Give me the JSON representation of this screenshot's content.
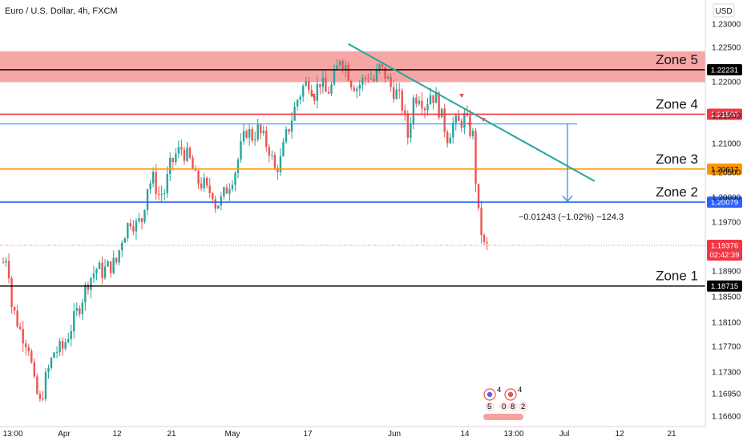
{
  "chart_data": {
    "type": "candlestick",
    "title": "Euro / U.S. Dollar, 4h, FXCM",
    "currency": "USD",
    "ylim": [
      1.1642,
      1.233
    ],
    "y_ticks": [
      "1.23000",
      "1.22500",
      "1.22000",
      "1.21500",
      "1.21000",
      "1.20500",
      "1.20000",
      "1.19700",
      "1.19376",
      "1.18900",
      "1.18500",
      "1.18100",
      "1.17700",
      "1.17300",
      "1.16950",
      "1.16600"
    ],
    "x_ticks": [
      "13:00",
      "Apr",
      "12",
      "21",
      "May",
      "17",
      "Jun",
      "14",
      "13:00",
      "Jul",
      "12",
      "21"
    ],
    "price_path": [
      [
        0,
        1.191
      ],
      [
        1.5,
        1.1925
      ],
      [
        3,
        1.184
      ],
      [
        6,
        1.18
      ],
      [
        9,
        1.1775
      ],
      [
        11,
        1.171
      ],
      [
        13,
        1.168
      ],
      [
        15,
        1.172
      ],
      [
        18,
        1.1765
      ],
      [
        21,
        1.177
      ],
      [
        24,
        1.1805
      ],
      [
        27,
        1.184
      ],
      [
        30,
        1.188
      ],
      [
        33,
        1.19
      ],
      [
        35,
        1.1895
      ],
      [
        38,
        1.1905
      ],
      [
        40,
        1.191
      ],
      [
        42,
        1.195
      ],
      [
        45,
        1.198
      ],
      [
        47,
        1.197
      ],
      [
        49,
        1.198
      ],
      [
        51,
        1.2035
      ],
      [
        53,
        1.2045
      ],
      [
        55,
        1.202
      ],
      [
        57,
        1.2025
      ],
      [
        59,
        1.2065
      ],
      [
        61,
        1.2085
      ],
      [
        63,
        1.2095
      ],
      [
        66,
        1.2075
      ],
      [
        68,
        1.2045
      ],
      [
        71,
        1.2035
      ],
      [
        72,
        1.2025
      ],
      [
        74,
        1.2025
      ],
      [
        75,
        1.2005
      ],
      [
        77,
        1.201
      ],
      [
        79,
        1.203
      ],
      [
        82,
        1.206
      ],
      [
        84,
        1.2095
      ],
      [
        86,
        1.2125
      ],
      [
        88,
        1.2115
      ],
      [
        90,
        1.2125
      ],
      [
        92,
        1.211
      ],
      [
        94,
        1.2095
      ],
      [
        96,
        1.206
      ],
      [
        98,
        1.2075
      ],
      [
        100,
        1.2115
      ],
      [
        102,
        1.2145
      ],
      [
        104,
        1.2175
      ],
      [
        106,
        1.2195
      ],
      [
        108,
        1.2205
      ],
      [
        110,
        1.2185
      ],
      [
        112,
        1.2205
      ],
      [
        114,
        1.2185
      ],
      [
        116,
        1.2195
      ],
      [
        118,
        1.2225
      ],
      [
        119,
        1.2245
      ],
      [
        121,
        1.223
      ],
      [
        123,
        1.2205
      ],
      [
        125,
        1.2195
      ],
      [
        127,
        1.2205
      ],
      [
        129,
        1.2215
      ],
      [
        131,
        1.2205
      ],
      [
        133,
        1.2225
      ],
      [
        135,
        1.2215
      ],
      [
        137,
        1.2195
      ],
      [
        139,
        1.2185
      ],
      [
        141,
        1.2165
      ],
      [
        143,
        1.2115
      ],
      [
        145,
        1.2175
      ],
      [
        147,
        1.2185
      ],
      [
        149,
        1.2165
      ],
      [
        151,
        1.2185
      ],
      [
        153,
        1.2175
      ],
      [
        155,
        1.2145
      ],
      [
        157,
        1.2115
      ],
      [
        159,
        1.2135
      ],
      [
        161,
        1.2135
      ],
      [
        163,
        1.2145
      ],
      [
        165,
        1.2125
      ],
      [
        166,
        1.2115
      ],
      [
        167,
        1.2045
      ],
      [
        168,
        1.1985
      ],
      [
        170,
        1.1935
      ]
    ],
    "zones": [
      {
        "name": "Zone 5",
        "price": 1.22231,
        "label": "1.22231",
        "band": [
          1.2203,
          1.2253
        ],
        "color": "#f7a1a1",
        "line_color": "#000000"
      },
      {
        "name": "Zone 4",
        "price": 1.21508,
        "label": "1.21508",
        "color": "#f23645"
      },
      {
        "name": "Zone 3",
        "price": 1.20617,
        "label": "1.20617",
        "color": "#ff9800"
      },
      {
        "name": "Zone 2",
        "price": 1.20079,
        "label": "1.20079",
        "color": "#2962ff"
      },
      {
        "name": "Zone 1",
        "price": 1.18715,
        "label": "1.18715",
        "color": "#000000"
      }
    ],
    "other_lines": [
      {
        "price": 1.2135,
        "color": "#2196f3"
      }
    ],
    "current_price": {
      "label": "1.19376",
      "countdown": "02:42:39",
      "color": "#f23645"
    },
    "measurement": {
      "text": "−0.01243 (−1.02%) −124.3",
      "color": "#2196f3"
    },
    "trendline": {
      "color": "#26a69a",
      "from": [
        122,
        1.2265
      ],
      "to": [
        209,
        1.2042
      ]
    },
    "event_badges": [
      "4",
      "4",
      "5",
      "8",
      "2",
      "0"
    ],
    "grid": false
  }
}
